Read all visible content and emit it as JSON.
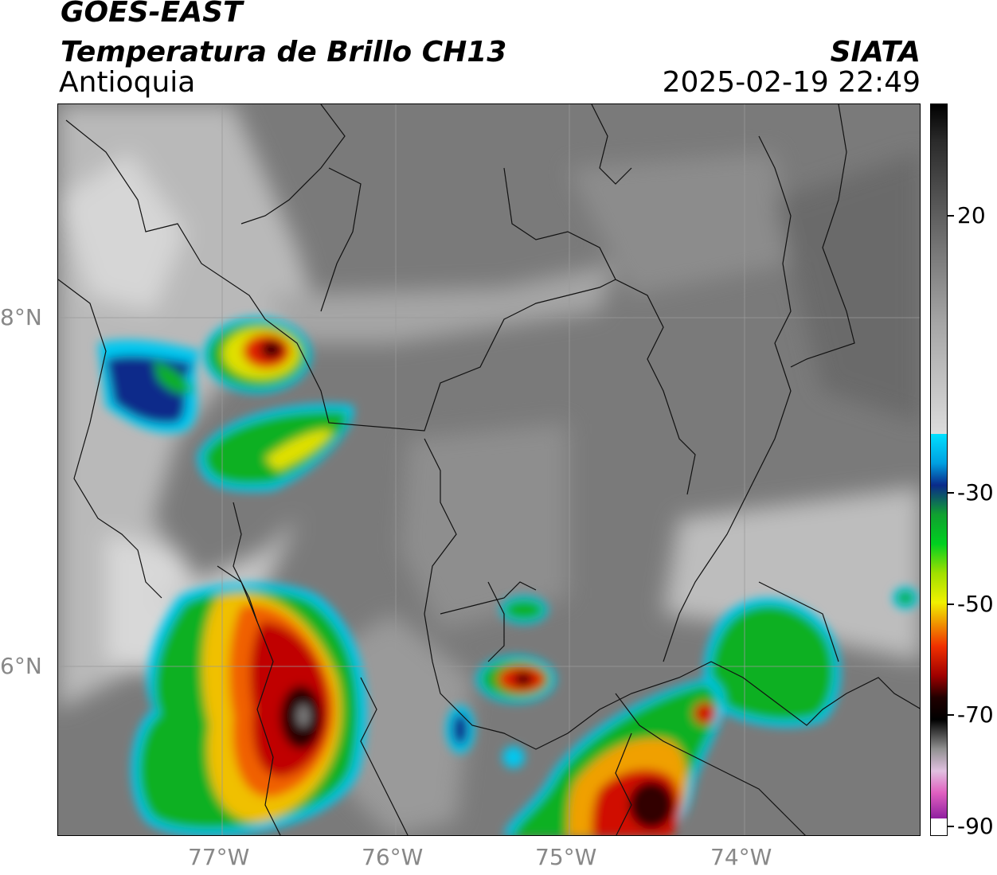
{
  "header": {
    "satellite": "GOES-EAST",
    "product": "Temperatura de Brillo CH13",
    "region": "Antioquia",
    "organization": "SIATA",
    "datetime": "2025-02-19 22:49"
  },
  "map": {
    "latitude_labels": [
      "8°N",
      "6°N"
    ],
    "longitude_labels": [
      "77°W",
      "76°W",
      "75°W",
      "74°W"
    ]
  },
  "colorbar": {
    "labels": [
      "20",
      "-30",
      "-50",
      "-70",
      "-90"
    ],
    "colors": {
      "warm_grey_dark": "#5a5a5a",
      "cold_white": "#f2f2f2",
      "cyan": "#00d0f0",
      "blue": "#0a2a8a",
      "green": "#10c020",
      "yellow": "#f0f000",
      "orange": "#f08000",
      "red": "#e01000",
      "dark_red": "#600000",
      "black": "#000000",
      "magenta": "#c040b0"
    }
  }
}
